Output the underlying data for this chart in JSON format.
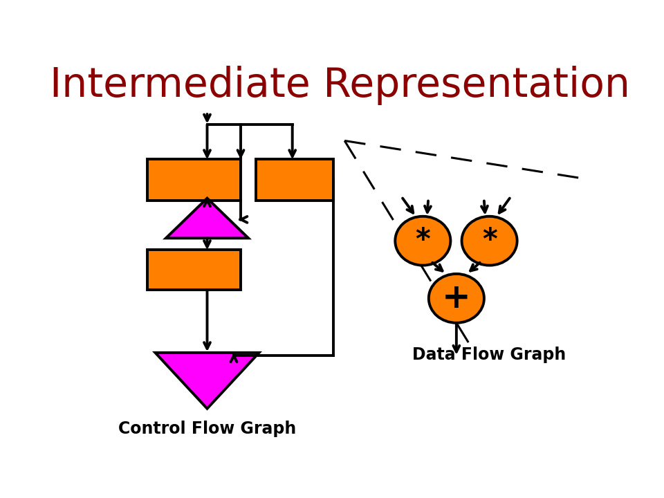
{
  "title": "Intermediate Representation",
  "title_color": "#8B0000",
  "title_fontsize": 42,
  "bg_color": "#FFFFFF",
  "orange_color": "#FF8000",
  "magenta_color": "#FF00FF",
  "black_color": "#000000",
  "cfg_label": "Control Flow Graph",
  "dfg_label": "Data Flow Graph",
  "label_fontsize": 17,
  "star_fontsize": 30,
  "plus_fontsize": 36
}
